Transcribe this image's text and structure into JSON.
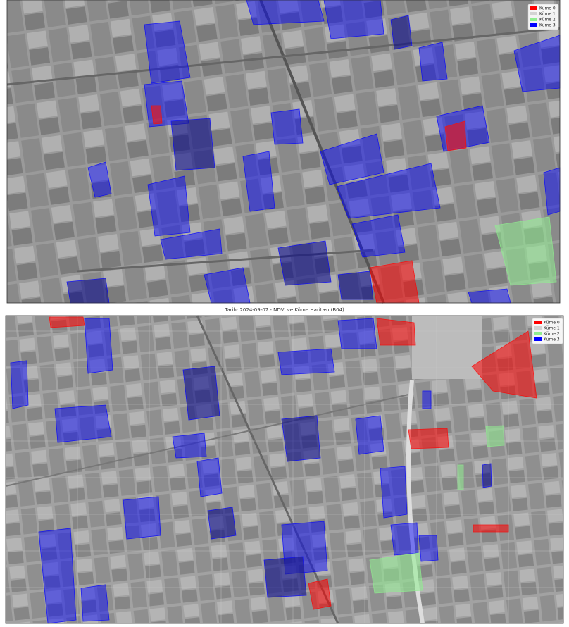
{
  "panels": [
    {
      "legend": [
        {
          "label": "Küme 0",
          "color": "#ff0000"
        },
        {
          "label": "Küme 1",
          "color": "#d3d3d3"
        },
        {
          "label": "Küme 2",
          "color": "#90ee90"
        },
        {
          "label": "Küme 3",
          "color": "#0000ff"
        }
      ]
    },
    {
      "title": "Tarih: 2024-09-07 - NDVI ve Küme Haritası (B04)",
      "legend": [
        {
          "label": "Küme 0",
          "color": "#ff0000"
        },
        {
          "label": "Küme 1",
          "color": "#d3d3d3"
        },
        {
          "label": "Küme 2",
          "color": "#90ee90"
        },
        {
          "label": "Küme 3",
          "color": "#0000ff"
        }
      ]
    }
  ]
}
